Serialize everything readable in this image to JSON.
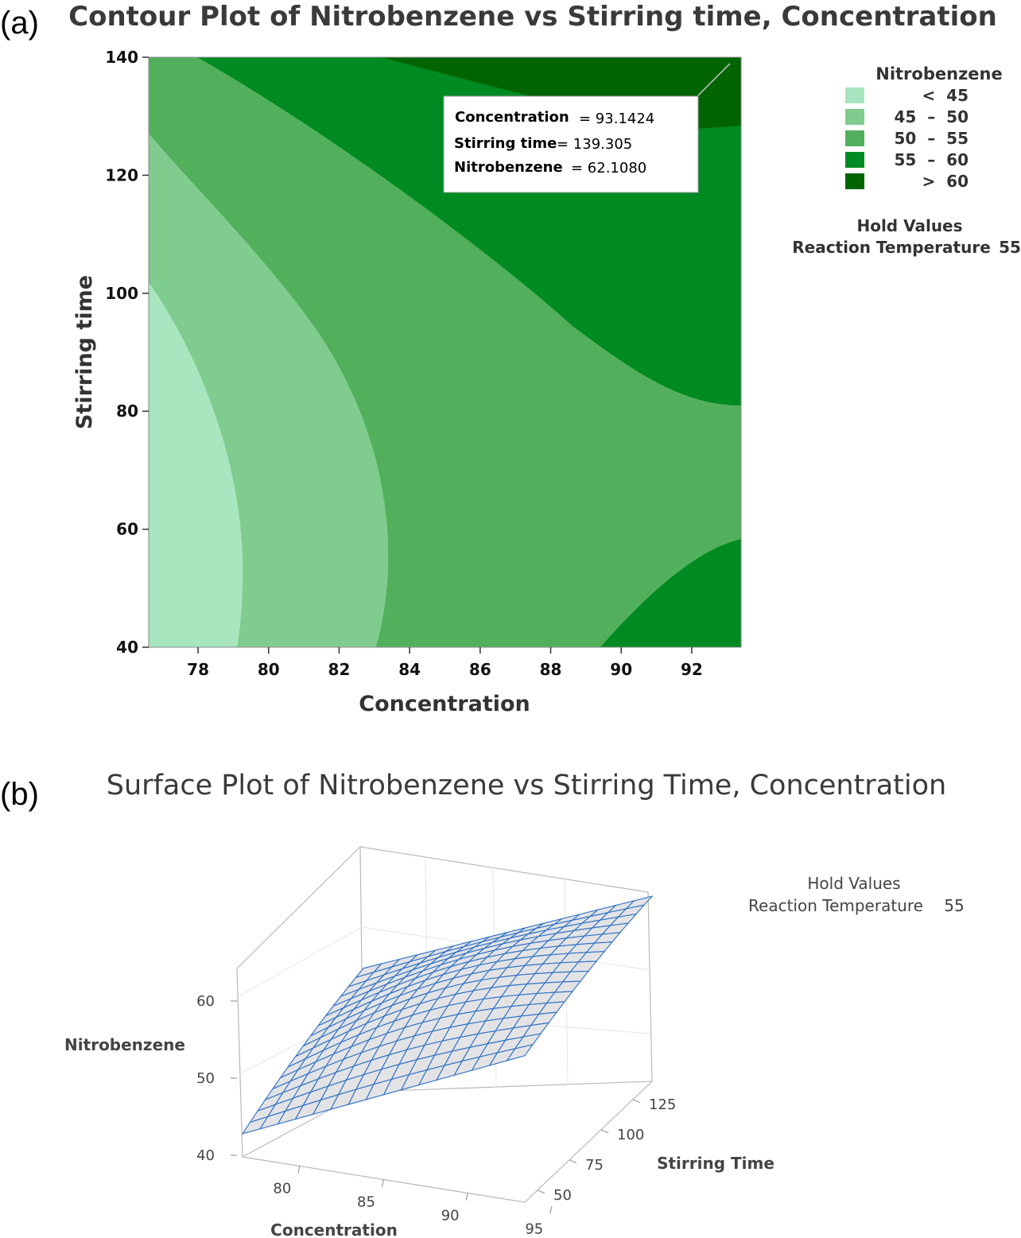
{
  "panel_a": {
    "label": "(a)",
    "title": "Contour Plot of Nitrobenzene vs Stirring time, Concentration",
    "tooltip": {
      "rows": [
        {
          "name": "Concentration",
          "eq": "= 93.1424"
        },
        {
          "name": "Stirring time",
          "eq": "= 139.305"
        },
        {
          "name": "Nitrobenzene",
          "eq": "= 62.1080"
        }
      ]
    },
    "legend": {
      "title": "Nitrobenzene",
      "items": [
        {
          "label": "<  45",
          "color": "#a8e6bf"
        },
        {
          "label": "45  –  50",
          "color": "#80cc8f"
        },
        {
          "label": "50  –  55",
          "color": "#52b05c"
        },
        {
          "label": "55  –  60",
          "color": "#008a22"
        },
        {
          "label": ">  60",
          "color": "#006400"
        }
      ]
    },
    "hold": {
      "title": "Hold Values",
      "name": "Reaction Temperature",
      "value": "55"
    }
  },
  "panel_b": {
    "label": "(b)",
    "title": "Surface Plot of Nitrobenzene vs Stirring Time, Concentration",
    "hold": {
      "title": "Hold Values",
      "name": "Reaction Temperature",
      "value": "55"
    }
  },
  "chart_data": [
    {
      "type": "contour",
      "xlabel": "Concentration",
      "ylabel": "Stirring time",
      "xlim": [
        76.6,
        93.4
      ],
      "ylim": [
        40,
        140
      ],
      "xticks": [
        78,
        80,
        82,
        84,
        86,
        88,
        90,
        92
      ],
      "yticks": [
        40,
        60,
        80,
        100,
        120,
        140
      ],
      "levels": [
        45,
        50,
        55,
        60
      ],
      "cursor": {
        "x": 93.1424,
        "y": 139.305,
        "z": 62.108
      }
    },
    {
      "type": "surface",
      "xlabel": "Concentration",
      "ylabel": "Stirring Time",
      "zlabel": "Nitrobenzene",
      "xticks": [
        80,
        85,
        90,
        95
      ],
      "yticks": [
        50,
        75,
        100,
        125
      ],
      "zticks": [
        40,
        50,
        60
      ],
      "xlim": [
        76.6,
        93.4
      ],
      "ylim": [
        40,
        140
      ],
      "zlim": [
        38,
        66
      ],
      "corners": {
        "x_low_y_low": 41,
        "x_high_y_low": 57,
        "x_low_y_high": 54,
        "x_high_y_high": 62
      }
    }
  ]
}
